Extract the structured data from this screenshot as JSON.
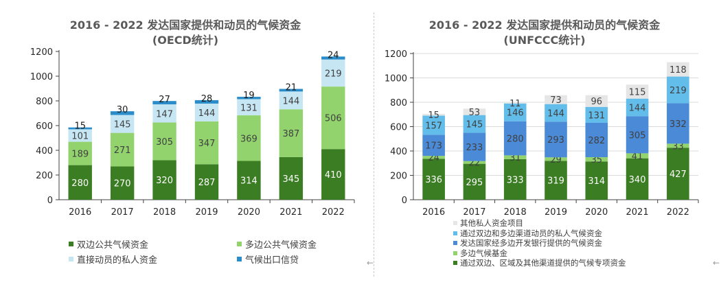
{
  "chart_data": [
    {
      "type": "bar",
      "stacked": true,
      "title": "2016 - 2022 发达国家提供和动员的气候资金",
      "subtitle": "(OECD统计)",
      "categories": [
        "2016",
        "2017",
        "2018",
        "2019",
        "2020",
        "2021",
        "2022"
      ],
      "ylim": [
        0,
        1200
      ],
      "yticks": [
        0,
        200,
        400,
        600,
        800,
        1000,
        1200
      ],
      "grid": false,
      "legend_position": "bottom",
      "series": [
        {
          "name": "双边公共气候资金",
          "color": "#3a7d22",
          "values": [
            280,
            270,
            320,
            287,
            314,
            345,
            410
          ]
        },
        {
          "name": "多边公共气候资金",
          "color": "#92d36e",
          "values": [
            189,
            271,
            305,
            347,
            369,
            387,
            506
          ]
        },
        {
          "name": "直接动员的私人资金",
          "color": "#c7e6f3",
          "values": [
            101,
            145,
            147,
            144,
            131,
            144,
            219
          ]
        },
        {
          "name": "气候出口信贷",
          "color": "#2a8dca",
          "values": [
            15,
            30,
            27,
            28,
            19,
            21,
            24
          ]
        }
      ]
    },
    {
      "type": "bar",
      "stacked": true,
      "title": "2016 - 2022 发达国家提供和动员的气候资金",
      "subtitle": "(UNFCCC统计)",
      "categories": [
        "2016",
        "2017",
        "2018",
        "2019",
        "2020",
        "2021",
        "2022"
      ],
      "ylim": [
        0,
        1200
      ],
      "yticks": [
        0,
        200,
        400,
        600,
        800,
        1000,
        1200
      ],
      "grid": true,
      "legend_position": "bottom",
      "series": [
        {
          "name": "通过双边、区域及其他渠道提供的气候专项资金",
          "color": "#3a7d22",
          "values": [
            336,
            295,
            333,
            319,
            314,
            340,
            427
          ]
        },
        {
          "name": "多边气候基金",
          "color": "#92d36e",
          "values": [
            24,
            22,
            31,
            29,
            35,
            41,
            33
          ]
        },
        {
          "name": "发达国家经多边开发银行提供的气候资金",
          "color": "#4a8ad6",
          "values": [
            173,
            233,
            280,
            293,
            282,
            305,
            332
          ]
        },
        {
          "name": "通过双边和多边渠道动员的私人气候资金",
          "color": "#62bdea",
          "values": [
            157,
            145,
            146,
            144,
            131,
            144,
            219
          ]
        },
        {
          "name": "其他私人资金项目",
          "color": "#e6e6e6",
          "values": [
            15,
            53,
            11,
            73,
            96,
            115,
            118
          ]
        }
      ]
    }
  ]
}
